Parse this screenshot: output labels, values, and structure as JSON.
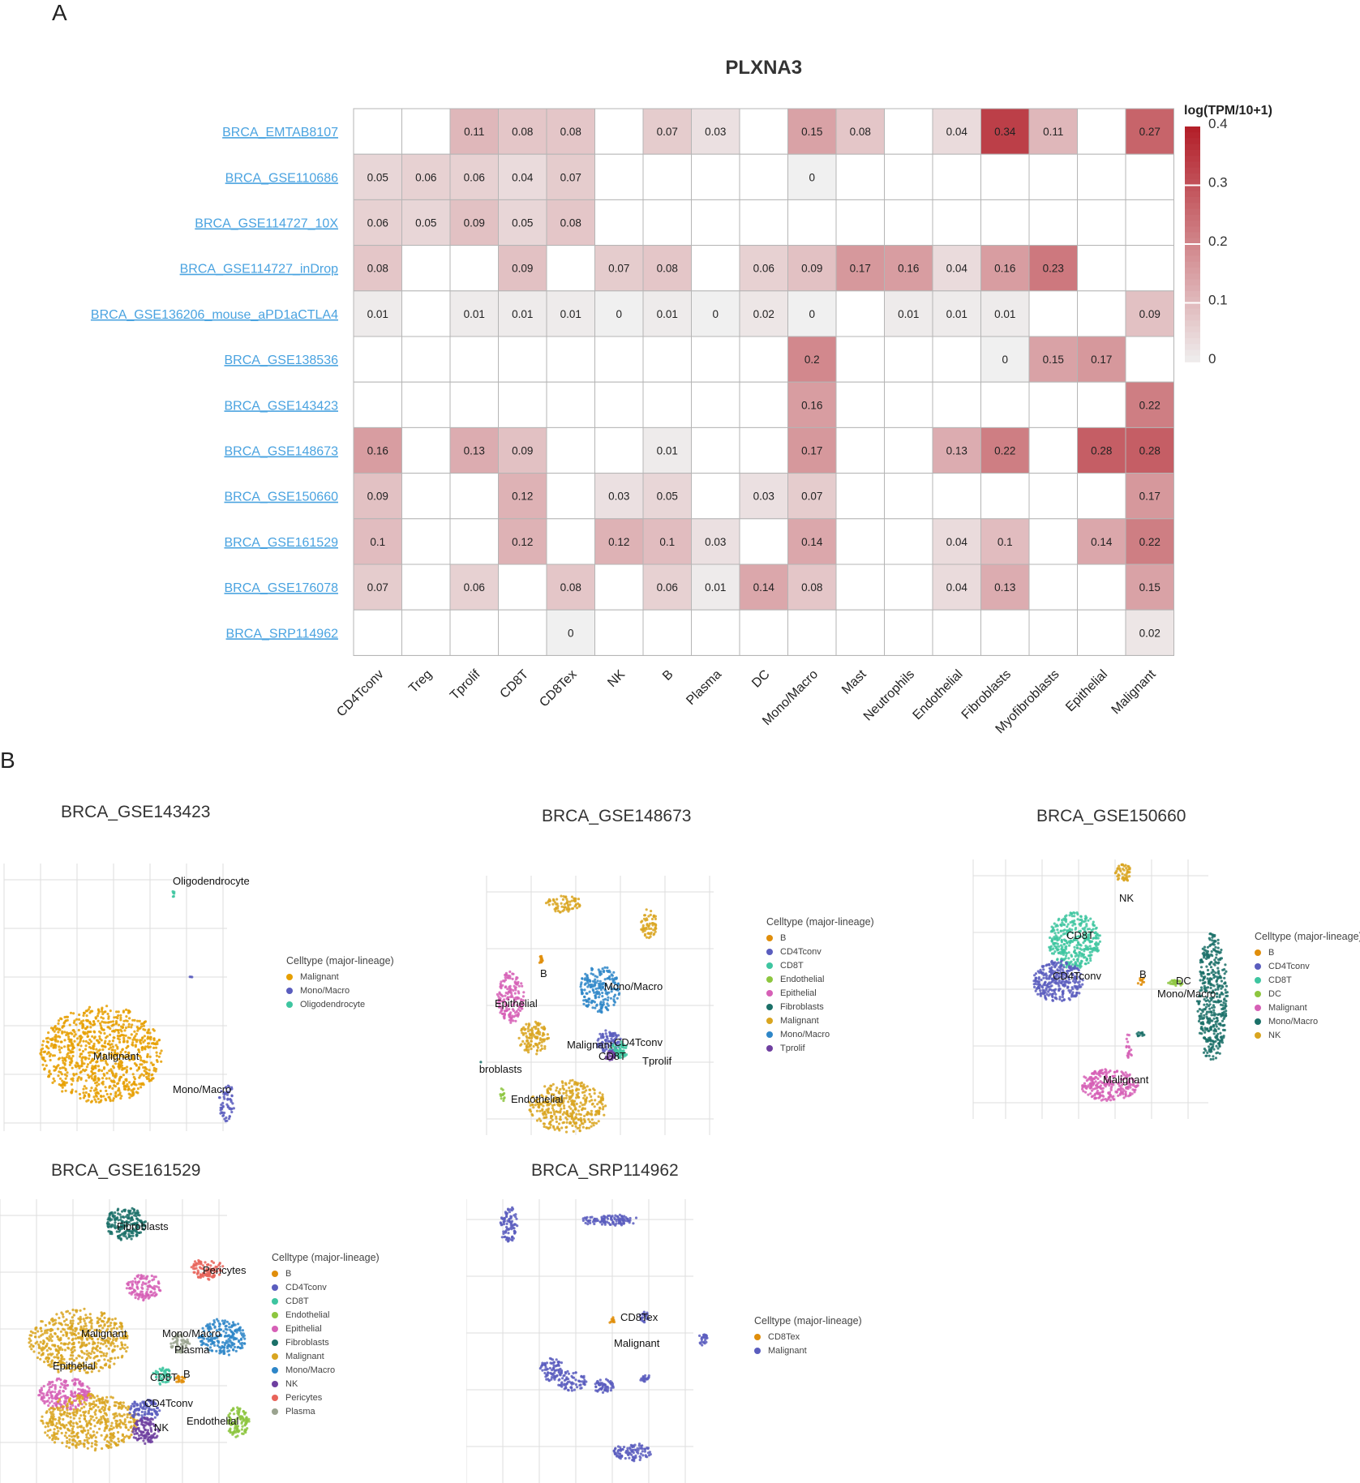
{
  "panel_a_label": "A",
  "panel_b_label": "B",
  "chart_data": [
    {
      "type": "heatmap",
      "title": "PLXNA3",
      "legend_title": "log(TPM/10+1)",
      "color_range": [
        0,
        0.4
      ],
      "color_ticks": [
        0,
        0.1,
        0.2,
        0.3,
        0.4
      ],
      "color_low": "#f0f0f0",
      "color_high": "#b3202a",
      "columns": [
        "CD4Tconv",
        "Treg",
        "Tprolif",
        "CD8T",
        "CD8Tex",
        "NK",
        "B",
        "Plasma",
        "DC",
        "Mono/Macro",
        "Mast",
        "Neutrophils",
        "Endothelial",
        "Fibroblasts",
        "Myofibroblasts",
        "Epithelial",
        "Malignant"
      ],
      "rows": [
        "BRCA_EMTAB8107",
        "BRCA_GSE110686",
        "BRCA_GSE114727_10X",
        "BRCA_GSE114727_inDrop",
        "BRCA_GSE136206_mouse_aPD1aCTLA4",
        "BRCA_GSE138536",
        "BRCA_GSE143423",
        "BRCA_GSE148673",
        "BRCA_GSE150660",
        "BRCA_GSE161529",
        "BRCA_GSE176078",
        "BRCA_SRP114962"
      ],
      "values": [
        [
          null,
          null,
          0.11,
          0.08,
          0.08,
          null,
          0.07,
          0.03,
          null,
          0.15,
          0.08,
          null,
          0.04,
          0.34,
          0.11,
          null,
          0.27
        ],
        [
          0.05,
          0.06,
          0.06,
          0.04,
          0.07,
          null,
          null,
          null,
          null,
          0,
          null,
          null,
          null,
          null,
          null,
          null,
          null
        ],
        [
          0.06,
          0.05,
          0.09,
          0.05,
          0.08,
          null,
          null,
          null,
          null,
          null,
          null,
          null,
          null,
          null,
          null,
          null,
          null
        ],
        [
          0.08,
          null,
          null,
          0.09,
          null,
          0.07,
          0.08,
          null,
          0.06,
          0.09,
          0.17,
          0.16,
          0.04,
          0.16,
          0.23,
          null,
          null
        ],
        [
          0.01,
          null,
          0.01,
          0.01,
          0.01,
          0,
          0.01,
          0,
          0.02,
          0,
          null,
          0.01,
          0.01,
          0.01,
          null,
          null,
          0.09
        ],
        [
          null,
          null,
          null,
          null,
          null,
          null,
          null,
          null,
          null,
          0.2,
          null,
          null,
          null,
          0,
          0.15,
          0.17,
          null
        ],
        [
          null,
          null,
          null,
          null,
          null,
          null,
          null,
          null,
          null,
          0.16,
          null,
          null,
          null,
          null,
          null,
          null,
          0.22
        ],
        [
          0.16,
          null,
          0.13,
          0.09,
          null,
          null,
          0.01,
          null,
          null,
          0.17,
          null,
          null,
          0.13,
          0.22,
          null,
          0.28,
          0.28
        ],
        [
          0.09,
          null,
          null,
          0.12,
          null,
          0.03,
          0.05,
          null,
          0.03,
          0.07,
          null,
          null,
          null,
          null,
          null,
          null,
          0.17
        ],
        [
          0.1,
          null,
          null,
          0.12,
          null,
          0.12,
          0.1,
          0.03,
          null,
          0.14,
          null,
          null,
          0.04,
          0.1,
          null,
          0.14,
          0.22
        ],
        [
          0.07,
          null,
          0.06,
          null,
          0.08,
          null,
          0.06,
          0.01,
          0.14,
          0.08,
          null,
          null,
          0.04,
          0.13,
          null,
          null,
          0.15
        ],
        [
          null,
          null,
          null,
          null,
          0,
          null,
          null,
          null,
          null,
          null,
          null,
          null,
          null,
          null,
          null,
          null,
          0.02
        ]
      ]
    },
    {
      "type": "scatter",
      "title": "BRCA_GSE143423",
      "legend_title": "Celltype (major-lineage)",
      "legend": [
        {
          "label": "Malignant",
          "color": "#E69F00"
        },
        {
          "label": "Mono/Macro",
          "color": "#5A5DBE"
        },
        {
          "label": "Oligodendrocyte",
          "color": "#3EC5A0"
        }
      ],
      "cluster_labels": [
        "Oligodendrocyte",
        "Malignant",
        "Mono/Macro"
      ]
    },
    {
      "type": "scatter",
      "title": "BRCA_GSE148673",
      "legend_title": "Celltype (major-lineage)",
      "legend": [
        {
          "label": "B",
          "color": "#E08E0B"
        },
        {
          "label": "CD4Tconv",
          "color": "#5A5DBE"
        },
        {
          "label": "CD8T",
          "color": "#3EC5A0"
        },
        {
          "label": "Endothelial",
          "color": "#8DC63F"
        },
        {
          "label": "Epithelial",
          "color": "#D660B6"
        },
        {
          "label": "Fibroblasts",
          "color": "#1B7068"
        },
        {
          "label": "Malignant",
          "color": "#D9A520"
        },
        {
          "label": "Mono/Macro",
          "color": "#2E86C8"
        },
        {
          "label": "Tprolif",
          "color": "#6F3FA0"
        }
      ],
      "cluster_labels": [
        "B",
        "Mono/Macro",
        "Epithelial",
        "Malignant",
        "CD4Tconv",
        "CD8T",
        "Tprolif",
        "Fibroblasts",
        "Endothelial"
      ]
    },
    {
      "type": "scatter",
      "title": "BRCA_GSE150660",
      "legend_title": "Celltype (major-lineage)",
      "legend": [
        {
          "label": "B",
          "color": "#E08E0B"
        },
        {
          "label": "CD4Tconv",
          "color": "#5A5DBE"
        },
        {
          "label": "CD8T",
          "color": "#3EC5A0"
        },
        {
          "label": "DC",
          "color": "#8DC63F"
        },
        {
          "label": "Malignant",
          "color": "#D660B6"
        },
        {
          "label": "Mono/Macro",
          "color": "#1B7068"
        },
        {
          "label": "NK",
          "color": "#D9A520"
        }
      ],
      "cluster_labels": [
        "NK",
        "CD8T",
        "CD4Tconv",
        "B",
        "DC",
        "Mono/Macro",
        "Malignant"
      ]
    },
    {
      "type": "scatter",
      "title": "BRCA_GSE161529",
      "legend_title": "Celltype (major-lineage)",
      "legend": [
        {
          "label": "B",
          "color": "#E08E0B"
        },
        {
          "label": "CD4Tconv",
          "color": "#5A5DBE"
        },
        {
          "label": "CD8T",
          "color": "#3EC5A0"
        },
        {
          "label": "Endothelial",
          "color": "#8DC63F"
        },
        {
          "label": "Epithelial",
          "color": "#D660B6"
        },
        {
          "label": "Fibroblasts",
          "color": "#1B7068"
        },
        {
          "label": "Malignant",
          "color": "#D9A520"
        },
        {
          "label": "Mono/Macro",
          "color": "#2E86C8"
        },
        {
          "label": "NK",
          "color": "#6F3FA0"
        },
        {
          "label": "Pericytes",
          "color": "#E8645A"
        },
        {
          "label": "Plasma",
          "color": "#9AA38F"
        }
      ],
      "cluster_labels": [
        "Fibroblasts",
        "Pericytes",
        "Malignant",
        "Mono/Macro",
        "Plasma",
        "Epithelial",
        "CD8T",
        "B",
        "CD4Tconv",
        "NK",
        "Endothelial"
      ]
    },
    {
      "type": "scatter",
      "title": "BRCA_SRP114962",
      "legend_title": "Celltype (major-lineage)",
      "legend": [
        {
          "label": "CD8Tex",
          "color": "#E08E0B"
        },
        {
          "label": "Malignant",
          "color": "#5A5DBE"
        }
      ],
      "cluster_labels": [
        "CD8Tex",
        "Malignant"
      ]
    }
  ]
}
